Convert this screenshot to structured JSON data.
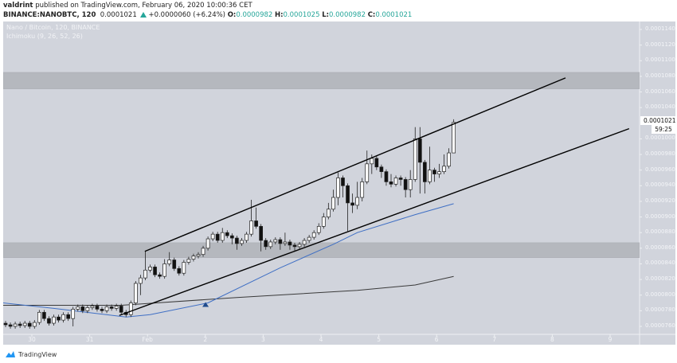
{
  "header": {
    "author": "valdrint",
    "published_text": "published on TradingView.com, February 06, 2020 10:00:36 CET",
    "symbol": "BINANCE:NANOBTC, 120",
    "last": "0.0001021",
    "change": "+0.0000060 (+6.24%)",
    "o_label": "O:",
    "o": "0.0000982",
    "h_label": "H:",
    "h": "0.0001025",
    "l_label": "L:",
    "l": "0.0000982",
    "c_label": "C:",
    "c": "0.0001021"
  },
  "legend": {
    "series_title": "Nano / Bitcoin, 120, BINANCE",
    "indicator": "Ichimoku (9, 26, 52, 26)"
  },
  "current_price_label": "0.0001021",
  "countdown": "59:25",
  "footer": {
    "brand": "TradingView",
    "icon": "tradingview-logo-icon"
  },
  "colors": {
    "background": "#d1d4dc",
    "zone": "#b5b8be",
    "ma_fast": "#3f6fc4",
    "ma_slow": "#3a3a3a",
    "accent": "#26a69a",
    "up_candle": "#ffffff",
    "down_candle": "#111111",
    "marker": "#1e4a8c"
  },
  "chart_data": {
    "type": "candlestick",
    "ylim": [
      7.5e-05,
      0.000115
    ],
    "y_ticks": [
      "0.0001140",
      "0.0001120",
      "0.0001100",
      "0.0001080",
      "0.0001060",
      "0.0001040",
      "0.0001000",
      "0.0000980",
      "0.0000960",
      "0.0000940",
      "0.0000920",
      "0.0000900",
      "0.0000880",
      "0.0000860",
      "0.0000840",
      "0.0000820",
      "0.0000800",
      "0.0000780",
      "0.0000760"
    ],
    "x_ticks": [
      "30",
      "31",
      "Feb",
      "2",
      "3",
      "4",
      "5",
      "6",
      "7",
      "8",
      "9"
    ],
    "bars_per_day": 12,
    "candles_ohlc": [
      [
        7.64e-05,
        7.67e-05,
        7.59e-05,
        7.62e-05
      ],
      [
        7.62e-05,
        7.65e-05,
        7.57e-05,
        7.6e-05
      ],
      [
        7.6e-05,
        7.66e-05,
        7.57e-05,
        7.63e-05
      ],
      [
        7.63e-05,
        7.66e-05,
        7.58e-05,
        7.61e-05
      ],
      [
        7.61e-05,
        7.67e-05,
        7.58e-05,
        7.64e-05
      ],
      [
        7.64e-05,
        7.67e-05,
        7.57e-05,
        7.6e-05
      ],
      [
        7.6e-05,
        7.68e-05,
        7.57e-05,
        7.65e-05
      ],
      [
        7.65e-05,
        7.81e-05,
        7.62e-05,
        7.78e-05
      ],
      [
        7.78e-05,
        7.81e-05,
        7.67e-05,
        7.7e-05
      ],
      [
        7.7e-05,
        7.73e-05,
        7.61e-05,
        7.64e-05
      ],
      [
        7.64e-05,
        7.75e-05,
        7.61e-05,
        7.72e-05
      ],
      [
        7.72e-05,
        7.75e-05,
        7.65e-05,
        7.68e-05
      ],
      [
        7.68e-05,
        7.78e-05,
        7.65e-05,
        7.75e-05
      ],
      [
        7.75e-05,
        7.78e-05,
        7.67e-05,
        7.7e-05
      ],
      [
        7.7e-05,
        7.85e-05,
        7.6e-05,
        7.82e-05
      ],
      [
        7.82e-05,
        7.88e-05,
        7.79e-05,
        7.85e-05
      ],
      [
        7.85e-05,
        7.88e-05,
        7.77e-05,
        7.8e-05
      ],
      [
        7.8e-05,
        7.87e-05,
        7.77e-05,
        7.84e-05
      ],
      [
        7.84e-05,
        7.89e-05,
        7.81e-05,
        7.86e-05
      ],
      [
        7.86e-05,
        7.89e-05,
        7.79e-05,
        7.82e-05
      ],
      [
        7.82e-05,
        7.85e-05,
        7.77e-05,
        7.8e-05
      ],
      [
        7.8e-05,
        7.88e-05,
        7.77e-05,
        7.85e-05
      ],
      [
        7.85e-05,
        7.88e-05,
        7.8e-05,
        7.83e-05
      ],
      [
        7.83e-05,
        7.89e-05,
        7.8e-05,
        7.86e-05
      ],
      [
        7.86e-05,
        7.89e-05,
        7.75e-05,
        7.78e-05
      ],
      [
        7.78e-05,
        7.81e-05,
        7.72e-05,
        7.75e-05
      ],
      [
        7.75e-05,
        7.93e-05,
        7.72e-05,
        7.9e-05
      ],
      [
        7.9e-05,
        8.18e-05,
        7.87e-05,
        8.15e-05
      ],
      [
        8.15e-05,
        8.26e-05,
        8e-05,
        8.22e-05
      ],
      [
        8.22e-05,
        8.56e-05,
        8.19e-05,
        8.32e-05
      ],
      [
        8.32e-05,
        8.39e-05,
        8.29e-05,
        8.36e-05
      ],
      [
        8.36e-05,
        8.39e-05,
        8.23e-05,
        8.26e-05
      ],
      [
        8.26e-05,
        8.29e-05,
        8.21e-05,
        8.24e-05
      ],
      [
        8.24e-05,
        8.46e-05,
        8.21e-05,
        8.4e-05
      ],
      [
        8.4e-05,
        8.55e-05,
        8.37e-05,
        8.45e-05
      ],
      [
        8.45e-05,
        8.48e-05,
        8.31e-05,
        8.34e-05
      ],
      [
        8.34e-05,
        8.37e-05,
        8.25e-05,
        8.28e-05
      ],
      [
        8.28e-05,
        8.45e-05,
        8.25e-05,
        8.42e-05
      ],
      [
        8.42e-05,
        8.49e-05,
        8.39e-05,
        8.46e-05
      ],
      [
        8.46e-05,
        8.53e-05,
        8.43e-05,
        8.5e-05
      ],
      [
        8.5e-05,
        8.55e-05,
        8.47e-05,
        8.52e-05
      ],
      [
        8.52e-05,
        8.63e-05,
        8.49e-05,
        8.6e-05
      ],
      [
        8.6e-05,
        8.75e-05,
        8.57e-05,
        8.72e-05
      ],
      [
        8.72e-05,
        8.81e-05,
        8.69e-05,
        8.78e-05
      ],
      [
        8.78e-05,
        8.81e-05,
        8.67e-05,
        8.7e-05
      ],
      [
        8.7e-05,
        8.86e-05,
        8.67e-05,
        8.8e-05
      ],
      [
        8.8e-05,
        8.83e-05,
        8.73e-05,
        8.76e-05
      ],
      [
        8.76e-05,
        8.79e-05,
        8.65e-05,
        8.73e-05
      ],
      [
        8.73e-05,
        8.76e-05,
        8.58e-05,
        8.66e-05
      ],
      [
        8.66e-05,
        8.73e-05,
        8.63e-05,
        8.7e-05
      ],
      [
        8.7e-05,
        8.81e-05,
        8.67e-05,
        8.78e-05
      ],
      [
        8.78e-05,
        9.22e-05,
        8.75e-05,
        8.95e-05
      ],
      [
        8.95e-05,
        9.12e-05,
        8.85e-05,
        8.88e-05
      ],
      [
        8.88e-05,
        8.91e-05,
        8.56e-05,
        8.7e-05
      ],
      [
        8.7e-05,
        8.73e-05,
        8.58e-05,
        8.62e-05
      ],
      [
        8.62e-05,
        8.71e-05,
        8.59e-05,
        8.68e-05
      ],
      [
        8.68e-05,
        8.74e-05,
        8.65e-05,
        8.71e-05
      ],
      [
        8.71e-05,
        8.74e-05,
        8.58e-05,
        8.66e-05
      ],
      [
        8.66e-05,
        8.8e-05,
        8.63e-05,
        8.68e-05
      ],
      [
        8.68e-05,
        8.71e-05,
        8.58e-05,
        8.64e-05
      ],
      [
        8.64e-05,
        8.67e-05,
        8.57e-05,
        8.62e-05
      ],
      [
        8.62e-05,
        8.68e-05,
        8.59e-05,
        8.65e-05
      ],
      [
        8.65e-05,
        8.73e-05,
        8.62e-05,
        8.7e-05
      ],
      [
        8.7e-05,
        8.77e-05,
        8.67e-05,
        8.74e-05
      ],
      [
        8.74e-05,
        8.83e-05,
        8.71e-05,
        8.8e-05
      ],
      [
        8.8e-05,
        8.92e-05,
        8.77e-05,
        8.88e-05
      ],
      [
        8.88e-05,
        9.05e-05,
        8.85e-05,
        9e-05
      ],
      [
        9e-05,
        9.18e-05,
        8.97e-05,
        9.1e-05
      ],
      [
        9.1e-05,
        9.35e-05,
        9.07e-05,
        9.25e-05
      ],
      [
        9.25e-05,
        9.57e-05,
        9.15e-05,
        9.5e-05
      ],
      [
        9.5e-05,
        9.53e-05,
        9.25e-05,
        9.4e-05
      ],
      [
        9.4e-05,
        9.43e-05,
        8.82e-05,
        9.18e-05
      ],
      [
        9.18e-05,
        9.3e-05,
        9.05e-05,
        9.15e-05
      ],
      [
        9.15e-05,
        9.45e-05,
        9.1e-05,
        9.25e-05
      ],
      [
        9.25e-05,
        9.5e-05,
        9.2e-05,
        9.45e-05
      ],
      [
        9.45e-05,
        9.85e-05,
        9.42e-05,
        9.68e-05
      ],
      [
        9.68e-05,
        9.8e-05,
        9.55e-05,
        9.75e-05
      ],
      [
        9.75e-05,
        9.78e-05,
        9.6e-05,
        9.64e-05
      ],
      [
        9.64e-05,
        9.67e-05,
        9.5e-05,
        9.58e-05
      ],
      [
        9.58e-05,
        9.61e-05,
        9.4e-05,
        9.45e-05
      ],
      [
        9.45e-05,
        9.55e-05,
        9.38e-05,
        9.42e-05
      ],
      [
        9.42e-05,
        9.53e-05,
        9.39e-05,
        9.5e-05
      ],
      [
        9.5e-05,
        9.53e-05,
        9.4e-05,
        9.48e-05
      ],
      [
        9.48e-05,
        9.51e-05,
        9.25e-05,
        9.35e-05
      ],
      [
        9.35e-05,
        9.6e-05,
        9.25e-05,
        9.48e-05
      ],
      [
        9.48e-05,
        0.0001015,
        9.45e-05,
        0.0001
      ],
      [
        0.0001,
        0.0001015,
        9.3e-05,
        9.7e-05
      ],
      [
        9.7e-05,
        9.73e-05,
        9.3e-05,
        9.45e-05
      ],
      [
        9.45e-05,
        9.9e-05,
        9.42e-05,
        9.6e-05
      ],
      [
        9.6e-05,
        9.63e-05,
        9.45e-05,
        9.55e-05
      ],
      [
        9.55e-05,
        9.68e-05,
        9.5e-05,
        9.58e-05
      ],
      [
        9.58e-05,
        9.8e-05,
        9.55e-05,
        9.65e-05
      ],
      [
        9.65e-05,
        9.88e-05,
        9.62e-05,
        9.82e-05
      ],
      [
        9.82e-05,
        0.0001025,
        9.82e-05,
        0.0001021
      ]
    ],
    "ma_fast": [
      [
        -0.5,
        7.9e-05
      ],
      [
        10,
        7.83e-05
      ],
      [
        25,
        7.72e-05
      ],
      [
        30,
        7.75e-05
      ],
      [
        42,
        7.9e-05
      ],
      [
        57,
        8.35e-05
      ],
      [
        68,
        8.65e-05
      ],
      [
        73,
        8.8e-05
      ],
      [
        85,
        9.03e-05
      ],
      [
        93,
        9.17e-05
      ]
    ],
    "ma_slow": [
      [
        -0.5,
        7.87e-05
      ],
      [
        24,
        7.87e-05
      ],
      [
        48,
        7.97e-05
      ],
      [
        73,
        8.06e-05
      ],
      [
        85,
        8.13e-05
      ],
      [
        93,
        8.24e-05
      ]
    ],
    "zones": [
      [
        0.0001064,
        0.0001085
      ],
      [
        8.48e-05,
        8.67e-05
      ]
    ],
    "trendlines": [
      [
        [
          28.9,
          8.56e-05
        ],
        [
          116.2,
          0.0001078
        ]
      ],
      [
        [
          23.6,
          7.74e-05
        ],
        [
          129.4,
          0.0001013
        ]
      ]
    ],
    "markers": [
      {
        "bar": 41.5,
        "price": 7.88e-05,
        "shape": "triangle-up"
      }
    ]
  }
}
